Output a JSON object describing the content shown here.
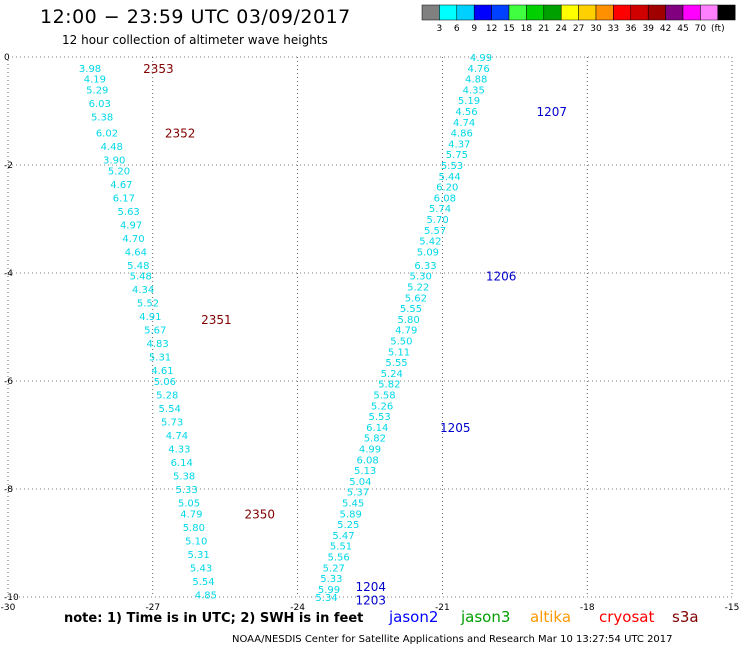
{
  "header": {
    "title": "12:00 − 23:59 UTC 03/09/2017",
    "subtitle": "12 hour collection of altimeter wave heights"
  },
  "colorbar": {
    "colors": [
      "#808080",
      "#00ffff",
      "#00d0ff",
      "#0000ff",
      "#0040ff",
      "#40ff40",
      "#00d000",
      "#00a000",
      "#ffff00",
      "#ffd000",
      "#ff9000",
      "#ff0000",
      "#d00000",
      "#a00000",
      "#800080",
      "#ff00ff",
      "#ff80ff",
      "#000000"
    ],
    "labels": [
      "3",
      "6",
      "9",
      "12",
      "15",
      "18",
      "21",
      "24",
      "27",
      "30",
      "33",
      "36",
      "39",
      "42",
      "45",
      "70",
      "(ft)"
    ]
  },
  "axes": {
    "y_labels": [
      "0",
      "-2",
      "-4",
      "-6",
      "-8",
      "-10"
    ],
    "x_labels": [
      "-30",
      "-27",
      "-24",
      "-21",
      "-18",
      "-15"
    ]
  },
  "tracks": {
    "west": [
      [
        "3.98",
        -28.3,
        -0.2
      ],
      [
        "4.19",
        -28.2,
        -0.4
      ],
      [
        "5.29",
        -28.15,
        -0.6
      ],
      [
        "6.03",
        -28.1,
        -0.85
      ],
      [
        "5.38",
        -28.05,
        -1.1
      ],
      [
        "6.02",
        -27.95,
        -1.4
      ],
      [
        "4.48",
        -27.85,
        -1.65
      ],
      [
        "3.90",
        -27.8,
        -1.9
      ],
      [
        "5.20",
        -27.7,
        -2.1
      ],
      [
        "4.67",
        -27.65,
        -2.35
      ],
      [
        "6.17",
        -27.6,
        -2.6
      ],
      [
        "5.63",
        -27.5,
        -2.85
      ],
      [
        "4.97",
        -27.45,
        -3.1
      ],
      [
        "4.70",
        -27.4,
        -3.35
      ],
      [
        "4.64",
        -27.35,
        -3.6
      ],
      [
        "5.48",
        -27.3,
        -3.85
      ],
      [
        "5.48",
        -27.25,
        -4.05
      ],
      [
        "4.34",
        -27.2,
        -4.3
      ],
      [
        "5.52",
        -27.1,
        -4.55
      ],
      [
        "4.91",
        -27.05,
        -4.8
      ],
      [
        "5.67",
        -26.95,
        -5.05
      ],
      [
        "4.83",
        -26.9,
        -5.3
      ],
      [
        "5.31",
        -26.85,
        -5.55
      ],
      [
        "4.61",
        -26.8,
        -5.8
      ],
      [
        "5.06",
        -26.75,
        -6.0
      ],
      [
        "5.28",
        -26.7,
        -6.25
      ],
      [
        "5.54",
        -26.65,
        -6.5
      ],
      [
        "5.73",
        -26.6,
        -6.75
      ],
      [
        "4.74",
        -26.5,
        -7.0
      ],
      [
        "4.33",
        -26.45,
        -7.25
      ],
      [
        "6.14",
        -26.4,
        -7.5
      ],
      [
        "5.38",
        -26.35,
        -7.75
      ],
      [
        "5.33",
        -26.3,
        -8.0
      ],
      [
        "5.05",
        -26.25,
        -8.25
      ],
      [
        "4.79",
        -26.2,
        -8.45
      ],
      [
        "5.80",
        -26.15,
        -8.7
      ],
      [
        "5.10",
        -26.1,
        -8.95
      ],
      [
        "5.31",
        -26.05,
        -9.2
      ],
      [
        "5.43",
        -26.0,
        -9.45
      ],
      [
        "5.54",
        -25.95,
        -9.7
      ],
      [
        "4.85",
        -25.9,
        -9.95
      ]
    ],
    "east": [
      [
        "4.99",
        -20.2,
        0.0
      ],
      [
        "4.76",
        -20.25,
        -0.2
      ],
      [
        "4.88",
        -20.3,
        -0.4
      ],
      [
        "4.35",
        -20.35,
        -0.6
      ],
      [
        "5.19",
        -20.45,
        -0.8
      ],
      [
        "4.56",
        -20.5,
        -1.0
      ],
      [
        "4.74",
        -20.55,
        -1.2
      ],
      [
        "4.86",
        -20.6,
        -1.4
      ],
      [
        "4.37",
        -20.65,
        -1.6
      ],
      [
        "5.75",
        -20.7,
        -1.8
      ],
      [
        "5.53",
        -20.8,
        -2.0
      ],
      [
        "5.44",
        -20.85,
        -2.2
      ],
      [
        "6.20",
        -20.9,
        -2.4
      ],
      [
        "6.08",
        -20.95,
        -2.6
      ],
      [
        "5.74",
        -21.05,
        -2.8
      ],
      [
        "5.70",
        -21.1,
        -3.0
      ],
      [
        "5.57",
        -21.15,
        -3.2
      ],
      [
        "5.42",
        -21.25,
        -3.4
      ],
      [
        "5.09",
        -21.3,
        -3.6
      ],
      [
        "6.33",
        -21.35,
        -3.85
      ],
      [
        "5.30",
        -21.45,
        -4.05
      ],
      [
        "5.22",
        -21.5,
        -4.25
      ],
      [
        "5.62",
        -21.55,
        -4.45
      ],
      [
        "5.55",
        -21.65,
        -4.65
      ],
      [
        "5.80",
        -21.7,
        -4.85
      ],
      [
        "4.79",
        -21.75,
        -5.05
      ],
      [
        "5.50",
        -21.85,
        -5.25
      ],
      [
        "5.11",
        -21.9,
        -5.45
      ],
      [
        "5.55",
        -21.95,
        -5.65
      ],
      [
        "5.24",
        -22.05,
        -5.85
      ],
      [
        "5.82",
        -22.1,
        -6.05
      ],
      [
        "5.58",
        -22.2,
        -6.25
      ],
      [
        "5.26",
        -22.25,
        -6.45
      ],
      [
        "5.53",
        -22.3,
        -6.65
      ],
      [
        "6.14",
        -22.35,
        -6.85
      ],
      [
        "5.82",
        -22.4,
        -7.05
      ],
      [
        "4.99",
        -22.5,
        -7.25
      ],
      [
        "6.08",
        -22.55,
        -7.45
      ],
      [
        "5.13",
        -22.6,
        -7.65
      ],
      [
        "5.04",
        -22.7,
        -7.85
      ],
      [
        "5.37",
        -22.75,
        -8.05
      ],
      [
        "5.45",
        -22.85,
        -8.25
      ],
      [
        "5.89",
        -22.9,
        -8.45
      ],
      [
        "5.25",
        -22.95,
        -8.65
      ],
      [
        "5.47",
        -23.05,
        -8.85
      ],
      [
        "5.51",
        -23.1,
        -9.05
      ],
      [
        "5.56",
        -23.15,
        -9.25
      ],
      [
        "5.27",
        -23.25,
        -9.45
      ],
      [
        "5.33",
        -23.3,
        -9.65
      ],
      [
        "5.99",
        -23.35,
        -9.85
      ],
      [
        "5.34",
        -23.4,
        -10.0
      ]
    ]
  },
  "revolutions": [
    {
      "label": "2353",
      "lon": -27.2,
      "lat": -0.2,
      "color": "#800000"
    },
    {
      "label": "2352",
      "lon": -26.75,
      "lat": -1.4,
      "color": "#800000"
    },
    {
      "label": "2351",
      "lon": -26.0,
      "lat": -4.85,
      "color": "#800000"
    },
    {
      "label": "2350",
      "lon": -25.1,
      "lat": -8.45,
      "color": "#800000"
    },
    {
      "label": "1207",
      "lon": -19.05,
      "lat": -1.0,
      "color": "#0000cc"
    },
    {
      "label": "1206",
      "lon": -20.1,
      "lat": -4.05,
      "color": "#0000cc"
    },
    {
      "label": "1205",
      "lon": -21.05,
      "lat": -6.85,
      "color": "#0000cc"
    },
    {
      "label": "1204",
      "lon": -22.8,
      "lat": -9.8,
      "color": "#0000cc"
    },
    {
      "label": "1203",
      "lon": -22.8,
      "lat": -10.05,
      "color": "#0000cc"
    }
  ],
  "footer": {
    "note": "note: 1) Time is in UTC; 2) SWH is in feet",
    "satellites": [
      {
        "name": "jason2",
        "color": "#0000ff"
      },
      {
        "name": "jason3",
        "color": "#00a000"
      },
      {
        "name": "altika",
        "color": "#ff9900"
      },
      {
        "name": "cryosat",
        "color": "#ff0000"
      },
      {
        "name": "s3a",
        "color": "#800000"
      }
    ],
    "credit": "NOAA/NESDIS Center for Satellite Applications and Research    Mar 10 13:27:54 UTC 2017"
  }
}
